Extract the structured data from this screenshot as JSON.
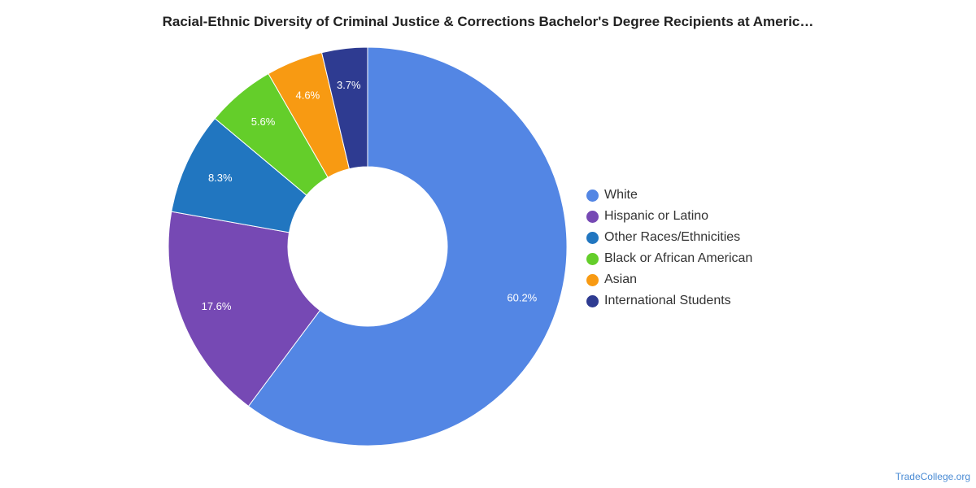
{
  "chart_data": {
    "type": "pie",
    "variant": "donut",
    "title": "Racial-Ethnic Diversity of Criminal Justice & Corrections Bachelor's Degree Recipients at Americ…",
    "categories": [
      "White",
      "Hispanic or Latino",
      "Other Races/Ethnicities",
      "Black or African American",
      "Asian",
      "International Students"
    ],
    "values": [
      60.2,
      17.6,
      8.3,
      5.6,
      4.6,
      3.7
    ],
    "labels": [
      "60.2%",
      "17.6%",
      "8.3%",
      "5.6%",
      "4.6%",
      "3.7%"
    ],
    "colors": [
      "#5386e4",
      "#7649b4",
      "#2176c0",
      "#64ce2a",
      "#f89a12",
      "#2e3b91"
    ],
    "legend_position": "right"
  },
  "credit": "TradeCollege.org"
}
